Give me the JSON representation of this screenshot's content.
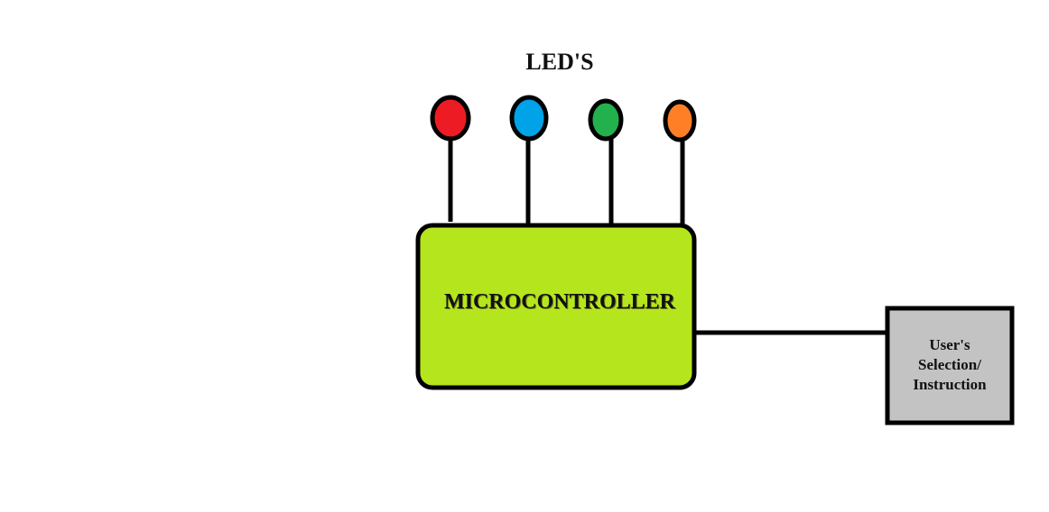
{
  "title": "LED'S",
  "microcontroller": {
    "label": "MICROCONTROLLER",
    "fill": "#b5e61d"
  },
  "user_box": {
    "lines": [
      "User's",
      "Selection/",
      "Instruction"
    ],
    "fill": "#c3c3c3"
  },
  "leds": [
    {
      "color_name": "red",
      "fill": "#ed1c24"
    },
    {
      "color_name": "blue",
      "fill": "#00a2e8"
    },
    {
      "color_name": "green",
      "fill": "#22b14c"
    },
    {
      "color_name": "orange",
      "fill": "#ff7f27"
    }
  ],
  "outline_color": "#000000"
}
